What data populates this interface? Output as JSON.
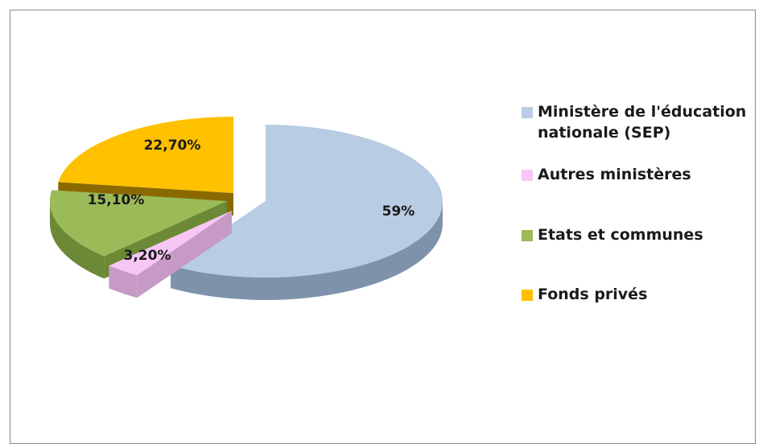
{
  "chart_data": {
    "type": "pie",
    "title": "",
    "slices": [
      {
        "label": "Ministère de l'éducation nationale (SEP)",
        "value": 59,
        "data_label": "59%",
        "color": "#b8cce4",
        "side_color": "#7e93ab"
      },
      {
        "label": "Autres ministères",
        "value": 3.2,
        "data_label": "3,20%",
        "color": "#f7c6f5",
        "side_color": "#c69ac4"
      },
      {
        "label": "Etats et communes",
        "value": 15.1,
        "data_label": "15,10%",
        "color": "#9bbb59",
        "side_color": "#6c8a35"
      },
      {
        "label": "Fonds privés",
        "value": 22.7,
        "data_label": "22,70%",
        "color": "#ffc000",
        "side_color": "#8a6a00"
      }
    ],
    "legend_position": "right",
    "exploded": true,
    "3d": true
  }
}
